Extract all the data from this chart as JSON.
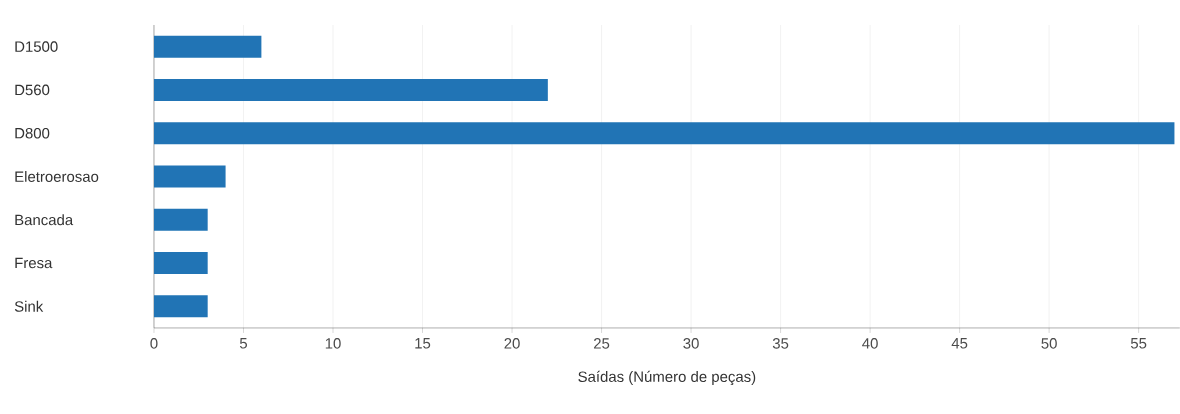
{
  "chart_data": {
    "type": "bar",
    "orientation": "horizontal",
    "xlabel": "Saídas (Número de peças)",
    "categories": [
      "D1500",
      "D560",
      "D800",
      "Eletroerosao",
      "Bancada",
      "Fresa",
      "Sink"
    ],
    "values": [
      6,
      22,
      57,
      4,
      3,
      3,
      3
    ],
    "color": "#2174b5",
    "xlim": [
      0,
      57.3
    ],
    "xticks": [
      0,
      5,
      10,
      15,
      20,
      25,
      30,
      35,
      40,
      45,
      50,
      55
    ],
    "grid": "x"
  }
}
